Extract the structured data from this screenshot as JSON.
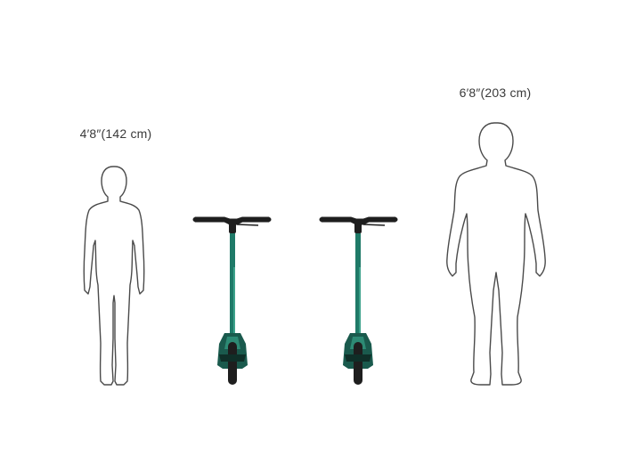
{
  "figures": {
    "short_person": {
      "height_label": "4′8″(142 cm)"
    },
    "tall_person": {
      "height_label": "6′8″(203 cm)"
    }
  },
  "colors": {
    "background": "#ffffff",
    "outline": "#4a4a4a",
    "scooter_teal": "#1f7a68",
    "scooter_dark": "#1e1e1e",
    "label_text": "#3a3a3a"
  },
  "icons": [
    "person-silhouette-icon",
    "scooter-front-icon"
  ]
}
